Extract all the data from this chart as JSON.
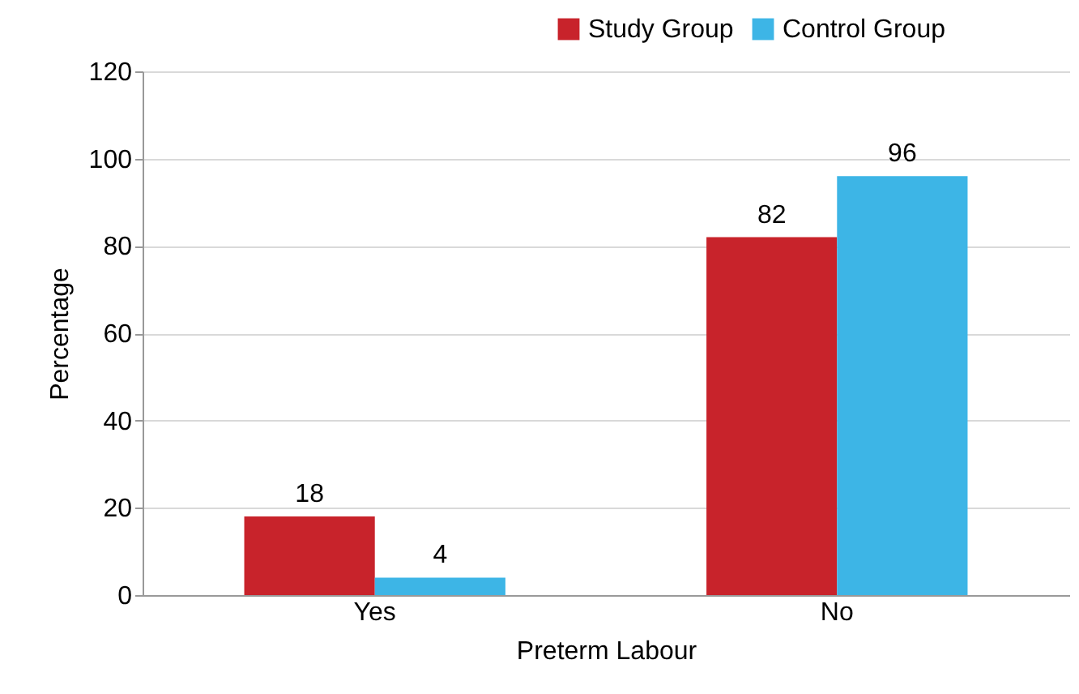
{
  "chart_data": {
    "type": "bar",
    "xlabel": "Preterm Labour",
    "ylabel": "Percentage",
    "categories": [
      "Yes",
      "No"
    ],
    "series": [
      {
        "name": "Study Group",
        "color": "#c8232b",
        "values": [
          18,
          82
        ]
      },
      {
        "name": "Control Group",
        "color": "#3db5e6",
        "values": [
          4,
          96
        ]
      }
    ],
    "ylim": [
      0,
      120
    ],
    "yticks": [
      0,
      20,
      40,
      60,
      80,
      100,
      120
    ],
    "grid": "y",
    "legend": "top right",
    "data_labels": true
  }
}
